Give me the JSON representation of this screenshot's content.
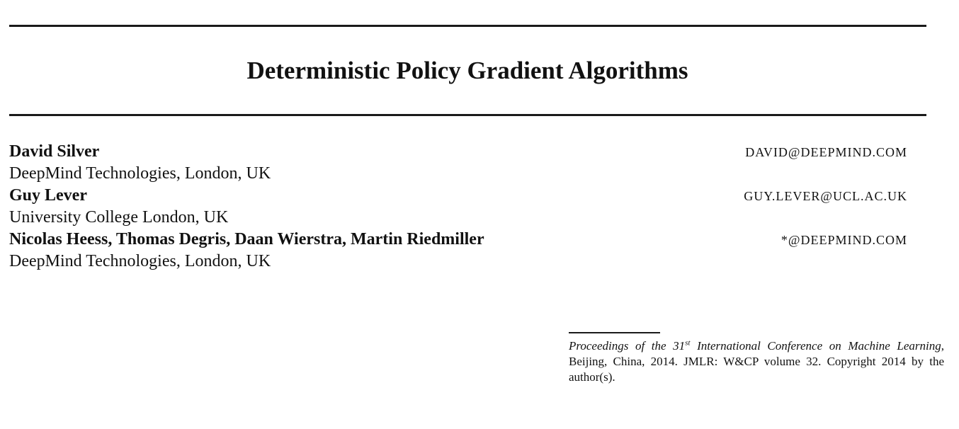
{
  "title": "Deterministic Policy Gradient Algorithms",
  "authors": [
    {
      "name": "David Silver",
      "email": "DAVID@DEEPMIND.COM",
      "affiliation": "DeepMind Technologies, London, UK"
    },
    {
      "name": "Guy Lever",
      "email": "GUY.LEVER@UCL.AC.UK",
      "affiliation": "University College London, UK"
    },
    {
      "name": "Nicolas Heess, Thomas Degris, Daan Wierstra, Martin Riedmiller",
      "email": "*@DEEPMIND.COM",
      "affiliation": "DeepMind Technologies, London, UK"
    }
  ],
  "footnote": {
    "proceedings_prefix": "Proceedings of the 31",
    "ordinal_suffix": "st",
    "conference_name": " International Conference on Machine Learning",
    "rest": ", Beijing, China, 2014. JMLR: W&CP volume 32. Copyright 2014 by the author(s)."
  }
}
